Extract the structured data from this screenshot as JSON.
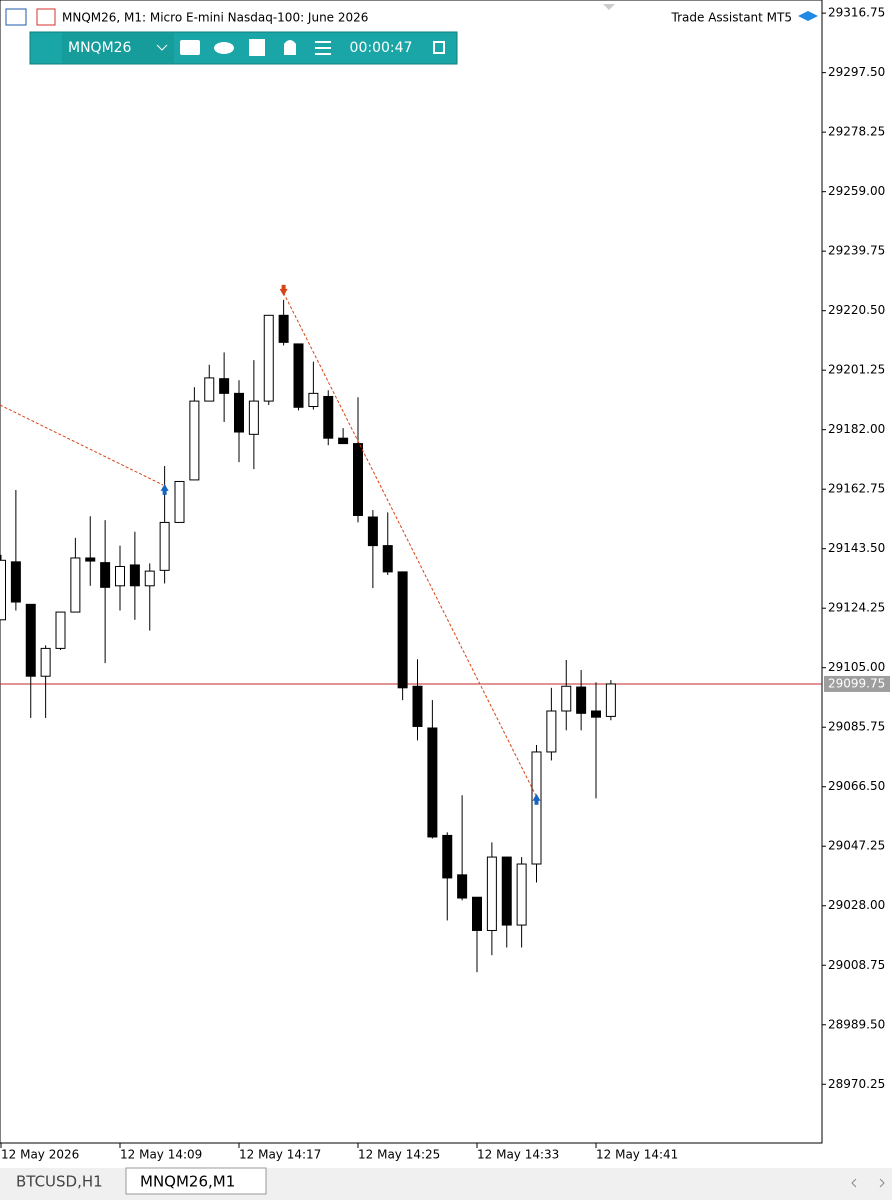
{
  "chart_data": {
    "type": "candlestick",
    "title": "MNQM26, M1:  Micro E-mini Nasdaq-100: June 2026",
    "categories": [
      "12 May 2026",
      null,
      null,
      null,
      null,
      null,
      null,
      null,
      "12 May 14:09",
      null,
      null,
      null,
      null,
      null,
      null,
      null,
      "12 May 14:17",
      null,
      null,
      null,
      null,
      null,
      null,
      null,
      "12 May 14:25",
      null,
      null,
      null,
      null,
      null,
      null,
      null,
      "12 May 14:33",
      null,
      null,
      null,
      null,
      null,
      null,
      null,
      "12 May 14:41",
      null
    ],
    "open": [
      29120.5,
      29139.25,
      29125.5,
      29102.25,
      29111.25,
      29123,
      29140.5,
      29139,
      29131.5,
      29138.25,
      29131.5,
      29136.5,
      29152,
      29165.75,
      29191.25,
      29198.5,
      29193.75,
      29180.5,
      29191.25,
      29219,
      29209.75,
      29189.5,
      29192.75,
      29179.25,
      29177.5,
      29153.75,
      29144.5,
      29136,
      29099,
      29085.5,
      29050.75,
      29038,
      29030.75,
      29020,
      29043.75,
      29021.75,
      29041.5,
      29077.75,
      29091,
      29098.75,
      29091,
      29089.25
    ],
    "high": [
      29141.5,
      29162.5,
      29125.5,
      29112.25,
      29123,
      29147,
      29154,
      29152.75,
      29144.5,
      29149,
      29138.75,
      29170.25,
      29165.25,
      29195.75,
      29203,
      29207,
      29198,
      29204.5,
      29219,
      29224,
      29209.75,
      29204,
      29194.75,
      29182.5,
      29192.5,
      29156,
      29155.25,
      29136,
      29107.75,
      29094.5,
      29051.75,
      29063.75,
      29030.75,
      29048.5,
      29043.75,
      29043.75,
      29080,
      29098.5,
      29107.5,
      29104.25,
      29100.25,
      29101
    ],
    "low": [
      29120.5,
      29123.5,
      29088.75,
      29088.75,
      29110.75,
      29123,
      29131.5,
      29106.5,
      29123.5,
      29120.5,
      29117,
      29132.25,
      29152,
      29165.75,
      29191.25,
      29184.5,
      29171.5,
      29169.25,
      29190,
      29209.25,
      29188.25,
      29188.5,
      29177,
      29177.5,
      29152,
      29130.75,
      29135,
      29094.5,
      29081.5,
      29049.75,
      29023.25,
      29029.75,
      29006.5,
      29012,
      29014.5,
      29014.5,
      29035.5,
      29075,
      29084.75,
      29084.75,
      29062.75,
      29088
    ],
    "close": [
      29139.75,
      29126.25,
      29102.25,
      29111.25,
      29123,
      29140.5,
      29139.5,
      29131,
      29137.75,
      29131.5,
      29136.25,
      29152,
      29165.25,
      29191.25,
      29198.75,
      29193.75,
      29181.25,
      29191.25,
      29219,
      29210.25,
      29189.25,
      29193.75,
      29179.25,
      29177.5,
      29154.25,
      29144.5,
      29136,
      29098.5,
      29086,
      29050.25,
      29037,
      29030.5,
      29020,
      29043.75,
      29021.75,
      29041.5,
      29077.75,
      29091,
      29099,
      29090.25,
      29089,
      29099.75
    ],
    "buy_arrows": [
      null,
      null,
      null,
      null,
      null,
      null,
      null,
      null,
      null,
      null,
      null,
      29163.5,
      null,
      null,
      null,
      null,
      null,
      null,
      null,
      null,
      null,
      null,
      null,
      null,
      null,
      null,
      null,
      null,
      null,
      null,
      null,
      null,
      null,
      null,
      null,
      null,
      29063.25,
      null,
      null,
      null,
      null,
      null
    ],
    "sell_arrows": [
      null,
      null,
      null,
      null,
      null,
      null,
      null,
      null,
      null,
      null,
      null,
      null,
      null,
      null,
      null,
      null,
      null,
      null,
      null,
      29226.25,
      null,
      null,
      null,
      null,
      null,
      null,
      null,
      null,
      null,
      null,
      null,
      null,
      null,
      null,
      null,
      null,
      null,
      null,
      null,
      null,
      null,
      null
    ],
    "up_color": "#ffffff",
    "down_color": "#000000",
    "buy_color": "#1565c0",
    "sell_color": "#d84315",
    "current_price": 29099.75,
    "current_price_color": "#c62828",
    "ylim": [
      28951.25,
      29321
    ],
    "yticks": [
      29316.75,
      {
        "value": 29297.5,
        "label": "29297.50"
      },
      29278.25,
      {
        "value": 29259,
        "label": "29259.00"
      },
      29239.75,
      {
        "value": 29220.5,
        "label": "29220.50"
      },
      29201.25,
      {
        "value": 29182,
        "label": "29182.00"
      },
      29162.75,
      {
        "value": 29143.5,
        "label": "29143.50"
      },
      29124.25,
      {
        "value": 29105,
        "label": "29105.00"
      },
      29085.75,
      {
        "value": 29066.5,
        "label": "29066.50"
      },
      29047.25,
      {
        "value": 29028,
        "label": "29028.00"
      },
      29008.75,
      {
        "value": 28989.5,
        "label": "28989.50"
      },
      28970.25
    ],
    "grid": false
  },
  "indicator": "Trade Assistant MT5",
  "toolbar": {
    "symbol": "MNQM26",
    "timer": "00:00:47"
  },
  "tabs": [
    "BTCUSD,H1",
    "MNQM26,M1"
  ]
}
